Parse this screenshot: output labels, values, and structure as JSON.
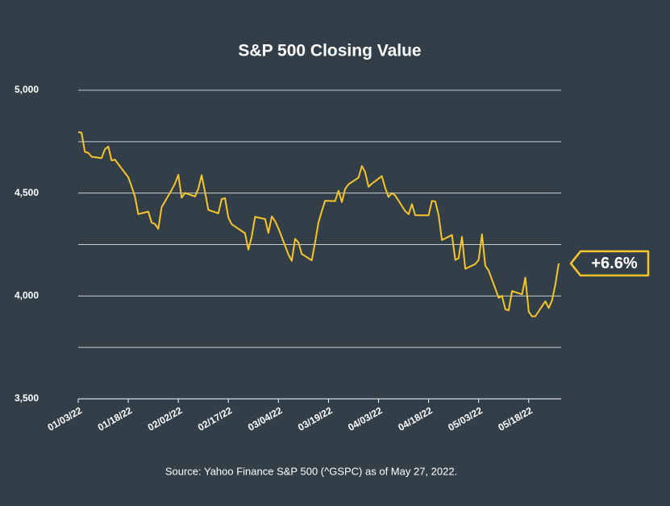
{
  "chart_data": {
    "type": "line",
    "title": "S&P 500 Closing Value",
    "source": "Source: Yahoo Finance S&P 500 (^GSPC) as of May 27, 2022.",
    "annotation": "+6.6%",
    "x": [
      "01/03/22",
      "01/04/22",
      "01/05/22",
      "01/06/22",
      "01/07/22",
      "01/10/22",
      "01/11/22",
      "01/12/22",
      "01/13/22",
      "01/14/22",
      "01/18/22",
      "01/19/22",
      "01/20/22",
      "01/21/22",
      "01/24/22",
      "01/25/22",
      "01/26/22",
      "01/27/22",
      "01/28/22",
      "01/31/22",
      "02/01/22",
      "02/02/22",
      "02/03/22",
      "02/04/22",
      "02/07/22",
      "02/08/22",
      "02/09/22",
      "02/10/22",
      "02/11/22",
      "02/14/22",
      "02/15/22",
      "02/16/22",
      "02/17/22",
      "02/18/22",
      "02/22/22",
      "02/23/22",
      "02/24/22",
      "02/25/22",
      "02/28/22",
      "03/01/22",
      "03/02/22",
      "03/03/22",
      "03/04/22",
      "03/07/22",
      "03/08/22",
      "03/09/22",
      "03/10/22",
      "03/11/22",
      "03/14/22",
      "03/15/22",
      "03/16/22",
      "03/17/22",
      "03/18/22",
      "03/21/22",
      "03/22/22",
      "03/23/22",
      "03/24/22",
      "03/25/22",
      "03/28/22",
      "03/29/22",
      "03/30/22",
      "03/31/22",
      "04/01/22",
      "04/04/22",
      "04/05/22",
      "04/06/22",
      "04/07/22",
      "04/08/22",
      "04/11/22",
      "04/12/22",
      "04/13/22",
      "04/14/22",
      "04/18/22",
      "04/19/22",
      "04/20/22",
      "04/21/22",
      "04/22/22",
      "04/25/22",
      "04/26/22",
      "04/27/22",
      "04/28/22",
      "04/29/22",
      "05/02/22",
      "05/03/22",
      "05/04/22",
      "05/05/22",
      "05/06/22",
      "05/09/22",
      "05/10/22",
      "05/11/22",
      "05/12/22",
      "05/13/22",
      "05/16/22",
      "05/17/22",
      "05/18/22",
      "05/19/22",
      "05/20/22",
      "05/23/22",
      "05/24/22",
      "05/25/22",
      "05/26/22",
      "05/27/22"
    ],
    "series": [
      {
        "name": "S&P 500",
        "color": "#f7c52b",
        "values": [
          4796.56,
          4793.54,
          4700.58,
          4696.05,
          4677.03,
          4670.29,
          4713.07,
          4726.35,
          4659.03,
          4662.85,
          4577.11,
          4532.76,
          4482.73,
          4397.94,
          4410.13,
          4356.45,
          4349.93,
          4326.51,
          4431.85,
          4515.55,
          4546.54,
          4589.38,
          4477.44,
          4500.53,
          4483.87,
          4521.54,
          4587.18,
          4504.08,
          4418.64,
          4401.67,
          4471.07,
          4475.01,
          4380.26,
          4348.87,
          4304.76,
          4225.5,
          4288.7,
          4384.65,
          4373.94,
          4306.26,
          4386.54,
          4363.49,
          4328.87,
          4201.09,
          4170.7,
          4277.88,
          4259.52,
          4204.31,
          4173.11,
          4262.45,
          4357.86,
          4411.67,
          4463.12,
          4461.18,
          4511.61,
          4456.24,
          4520.16,
          4543.06,
          4575.52,
          4631.6,
          4602.45,
          4530.41,
          4545.86,
          4582.64,
          4525.12,
          4481.15,
          4500.21,
          4488.28,
          4412.53,
          4397.45,
          4446.59,
          4392.59,
          4391.69,
          4462.21,
          4459.45,
          4393.66,
          4271.78,
          4296.12,
          4175.2,
          4183.96,
          4287.5,
          4131.93,
          4155.38,
          4175.48,
          4300.17,
          4146.87,
          4123.34,
          3991.24,
          4001.05,
          3935.18,
          3930.08,
          4023.89,
          4008.01,
          4088.85,
          3923.68,
          3900.79,
          3901.36,
          3973.75,
          3941.48,
          3978.73,
          4057.84,
          4158.24
        ]
      }
    ],
    "xlim": [
      "01/03/22",
      "05/27/22"
    ],
    "xticks": [
      "01/03/22",
      "01/18/22",
      "02/02/22",
      "02/17/22",
      "03/04/22",
      "03/19/22",
      "04/03/22",
      "04/18/22",
      "05/03/22",
      "05/18/22"
    ],
    "ylim": [
      3500,
      5000
    ],
    "yticks": [
      {
        "value": 3500,
        "label": "3,500"
      },
      {
        "value": 4000,
        "label": "4,000"
      },
      {
        "value": 4500,
        "label": "4,500"
      },
      {
        "value": 5000,
        "label": "5,000"
      }
    ],
    "minor_yticks": [
      3750,
      4250,
      4750
    ],
    "grid": true
  }
}
